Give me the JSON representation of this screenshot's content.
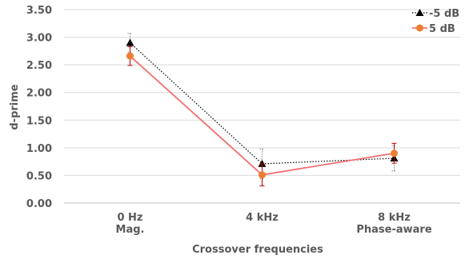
{
  "chart_data": {
    "type": "line",
    "title": "",
    "xlabel": "Crossover frequencies",
    "ylabel": "d-prime",
    "ylim": [
      0,
      3.5
    ],
    "ytick_step": 0.5,
    "yticks": [
      "0.00",
      "0.50",
      "1.00",
      "1.50",
      "2.00",
      "2.50",
      "3.00",
      "3.50"
    ],
    "categories": [
      [
        "0 Hz",
        "Mag."
      ],
      [
        "4 kHz",
        ""
      ],
      [
        "8 kHz",
        "Phase-aware"
      ]
    ],
    "grid": "horizontal",
    "legend_position": "top-right",
    "series": [
      {
        "name": "-5 dB",
        "values": [
          2.9,
          0.71,
          0.81
        ],
        "error": [
          0.17,
          0.27,
          0.23
        ],
        "color": "#000000",
        "line_style": "dotted",
        "marker": "triangle"
      },
      {
        "name": "5 dB",
        "values": [
          2.66,
          0.51,
          0.9
        ],
        "error": [
          0.17,
          0.2,
          0.18
        ],
        "color": "#ED7D31",
        "line_color": "#F26F6F",
        "error_color": "#C00000",
        "line_style": "solid",
        "marker": "circle"
      }
    ]
  }
}
